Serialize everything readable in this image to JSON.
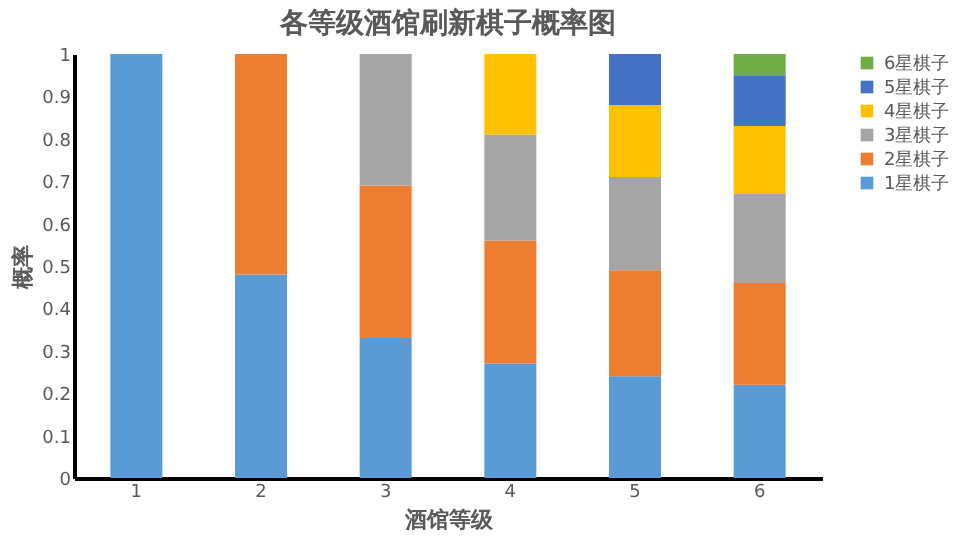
{
  "chart_data": {
    "type": "bar",
    "title": "各等级酒馆刷新棋子概率图",
    "xlabel": "酒馆等级",
    "ylabel": "概率",
    "categories": [
      "1",
      "2",
      "3",
      "4",
      "5",
      "6"
    ],
    "stacked": true,
    "ylim": [
      0,
      1
    ],
    "yticks": [
      0,
      0.1,
      0.2,
      0.3,
      0.4,
      0.5,
      0.6,
      0.7,
      0.8,
      0.9,
      1
    ],
    "grid": false,
    "legend": "right",
    "series": [
      {
        "name": "1星棋子",
        "color": "#5b9bd5",
        "values": [
          1,
          0.48,
          0.33,
          0.27,
          0.24,
          0.22
        ]
      },
      {
        "name": "2星棋子",
        "color": "#ed7d31",
        "values": [
          null,
          0.52,
          0.36,
          0.29,
          0.25,
          0.24
        ]
      },
      {
        "name": "3星棋子",
        "color": "#a5a5a5",
        "values": [
          null,
          null,
          0.31,
          0.25,
          0.22,
          0.21
        ]
      },
      {
        "name": "4星棋子",
        "color": "#ffc000",
        "values": [
          null,
          null,
          null,
          0.19,
          0.17,
          0.16
        ]
      },
      {
        "name": "5星棋子",
        "color": "#4472c4",
        "values": [
          null,
          null,
          null,
          null,
          0.12,
          0.12
        ]
      },
      {
        "name": "6星棋子",
        "color": "#70ad47",
        "values": [
          null,
          null,
          null,
          null,
          null,
          0.05
        ]
      }
    ]
  }
}
